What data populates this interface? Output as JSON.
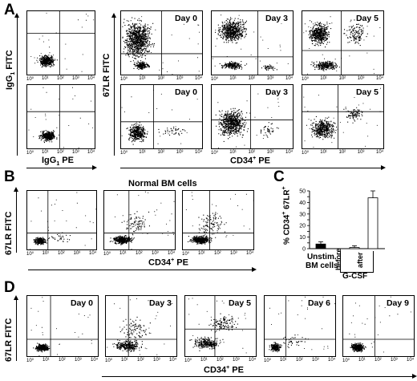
{
  "figure": {
    "panel_A": {
      "letter": "A",
      "control_ylabel": "IgG",
      "control_ylabel_sub": "1",
      "control_ylabel_rest": " FITC",
      "control_xlabel": "IgG",
      "control_xlabel_sub": "1",
      "control_xlabel_rest": " PE",
      "main_ylabel": "67LR FITC",
      "main_xlabel": "CD34",
      "main_xlabel_sup": "+",
      "main_xlabel_rest": " PE",
      "top_days": [
        "Day 0",
        "Day 3",
        "Day 5"
      ],
      "bottom_days": [
        "Day 0",
        "Day 3",
        "Day 5"
      ]
    },
    "panel_B": {
      "letter": "B",
      "title": "Normal BM cells",
      "ylabel": "67LR FITC",
      "xlabel": "CD34",
      "xlabel_sup": "+",
      "xlabel_rest": " PE"
    },
    "panel_C": {
      "letter": "C",
      "ylabel": "% CD34",
      "ylabel_sup1": "+",
      "ylabel_mid": " 67LR",
      "ylabel_sup2": "+",
      "label_unstim_1": "Unstim.",
      "label_unstim_2": "BM cells",
      "label_before": "before",
      "label_after": "after",
      "label_group": "G-CSF"
    },
    "panel_D": {
      "letter": "D",
      "ylabel": "67LR FITC",
      "xlabel": "CD34",
      "xlabel_sup": "+",
      "xlabel_rest": " PE",
      "days": [
        "Day 0",
        "Day 3",
        "Day 5",
        "Day 6",
        "Day 9"
      ]
    },
    "tick_labels": [
      "10⁰",
      "10¹",
      "10²",
      "10³",
      "10⁴"
    ]
  },
  "chart_data": {
    "type": "bar",
    "categories": [
      "Unstim. BM cells",
      "before",
      "after"
    ],
    "values": [
      4,
      1,
      44
    ],
    "errors": [
      2,
      1.5,
      6
    ],
    "fills": [
      "#000000",
      "#ffffff",
      "#ffffff"
    ],
    "ylabel": "% CD34+ 67LR+",
    "yticks": [
      0,
      5,
      10,
      15,
      20,
      25,
      30,
      35,
      40,
      45,
      50
    ],
    "ylim": [
      0,
      50
    ]
  }
}
